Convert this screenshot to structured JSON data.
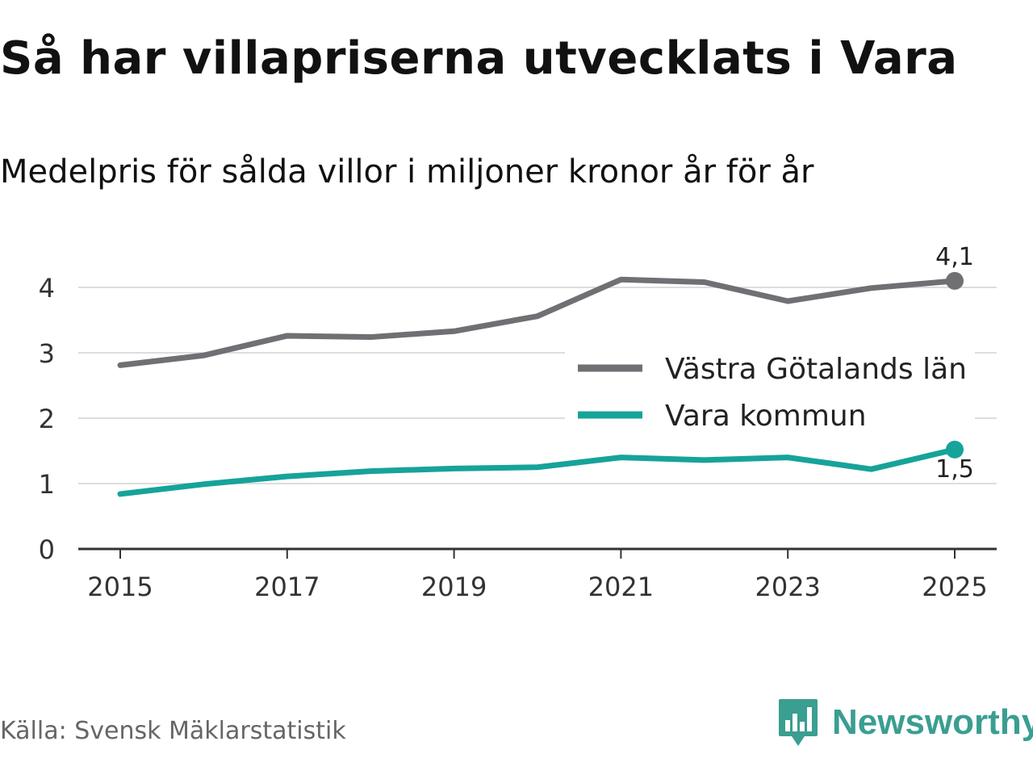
{
  "header": {
    "title": "Så har villapriserna utvecklats i Vara",
    "subtitle": "Medelpris för sålda villor i miljoner kronor år för år"
  },
  "colors": {
    "vastra_gotaland": "#707074",
    "vara": "#16a39a",
    "grid": "#dddddd",
    "axis": "#333333",
    "brand": "#3a9e91"
  },
  "chart_data": {
    "type": "line",
    "x": [
      2015,
      2016,
      2017,
      2018,
      2019,
      2020,
      2021,
      2022,
      2023,
      2024,
      2025
    ],
    "x_ticks": [
      "2015",
      "2017",
      "2019",
      "2021",
      "2023",
      "2025"
    ],
    "y_ticks": [
      "0",
      "1",
      "2",
      "3",
      "4"
    ],
    "ylim": [
      0,
      4.5
    ],
    "xlim": [
      2014.5,
      2025.5
    ],
    "xlabel": "",
    "ylabel": "",
    "grid": true,
    "legend_position": "right",
    "series": [
      {
        "name": "Västra Götalands län",
        "color_key": "vastra_gotaland",
        "values": [
          2.81,
          2.96,
          3.26,
          3.24,
          3.33,
          3.56,
          4.12,
          4.08,
          3.79,
          3.99,
          4.1
        ],
        "end_label": "4,1",
        "end_label_position": "above"
      },
      {
        "name": "Vara kommun",
        "color_key": "vara",
        "values": [
          0.84,
          0.99,
          1.11,
          1.19,
          1.23,
          1.25,
          1.4,
          1.36,
          1.4,
          1.22,
          1.52
        ],
        "end_label": "1,5",
        "end_label_position": "below"
      }
    ]
  },
  "footer": {
    "source": "Källa: Svensk Mäklarstatistik",
    "brand": "Newsworthy"
  }
}
